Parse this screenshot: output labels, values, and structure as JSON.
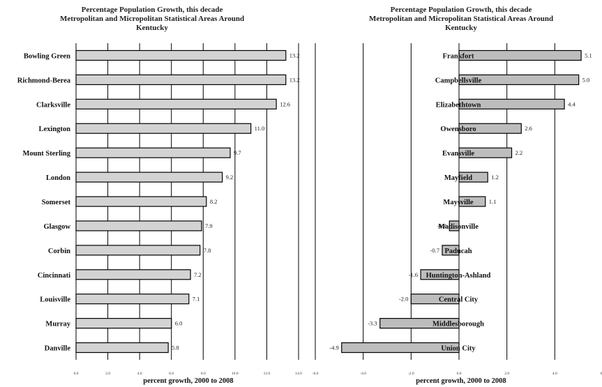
{
  "chart_data": [
    {
      "type": "bar",
      "orientation": "horizontal",
      "title": "Percentage Population Growth, this decade\nMetropolitan and Micropolitan Statistical Areas Around\nKentucky",
      "xlabel": "percent growth, 2000 to 2008",
      "ylabel": "",
      "xlim": [
        0,
        14
      ],
      "xticks": [
        "0.0",
        "2.0",
        "4.0",
        "6.0",
        "8.0",
        "10.0",
        "12.0",
        "14.0"
      ],
      "grid": true,
      "categories": [
        "Bowling Green",
        "Richmond-Berea",
        "Clarksville",
        "Lexington",
        "Mount Sterling",
        "London",
        "Somerset",
        "Glasgow",
        "Corbin",
        "Cincinnati",
        "Louisville",
        "Murray",
        "Danville"
      ],
      "values": [
        13.2,
        13.2,
        12.6,
        11.0,
        9.7,
        9.2,
        8.2,
        7.9,
        7.8,
        7.2,
        7.1,
        6.0,
        5.8
      ],
      "labels": [
        "13.2",
        "13.2",
        "12.6",
        "11.0",
        "9.7",
        "9.2",
        "8.2",
        "7.9",
        "7.8",
        "7.2",
        "7.1",
        "6.0",
        "5.8"
      ],
      "bar_color": "#d3d3d3"
    },
    {
      "type": "bar",
      "orientation": "horizontal",
      "title": "Percentage Population Growth, this decade\nMetropolitan and Micropolitan Statistical Areas Around\nKentucky",
      "xlabel": "percent growth, 2000 to 2008",
      "ylabel": "",
      "xlim": [
        -6,
        6
      ],
      "xticks": [
        "-6.0",
        "-4.0",
        "-2.0",
        "0.0",
        "2.0",
        "4.0",
        "6.0"
      ],
      "grid": true,
      "categories": [
        "Frankfort",
        "Campbellsville",
        "Elizabethtown",
        "Owensboro",
        "Evansville",
        "Mayfield",
        "Maysville",
        "Madisonville",
        "Paducah",
        "Huntington-Ashland",
        "Central City",
        "Middlesborough",
        "Union City"
      ],
      "values": [
        5.1,
        5.0,
        4.4,
        2.6,
        2.2,
        1.2,
        1.1,
        -0.4,
        -0.7,
        -1.6,
        -2.0,
        -3.3,
        -4.9
      ],
      "labels": [
        "5.1",
        "5.0",
        "4.4",
        "2.6",
        "2.2",
        "1.2",
        "1.1",
        "-0.4",
        "-0.7",
        "-1.6",
        "-2.0",
        "-3.3",
        "-4.9"
      ],
      "bar_color": "#bdbdbd"
    }
  ]
}
